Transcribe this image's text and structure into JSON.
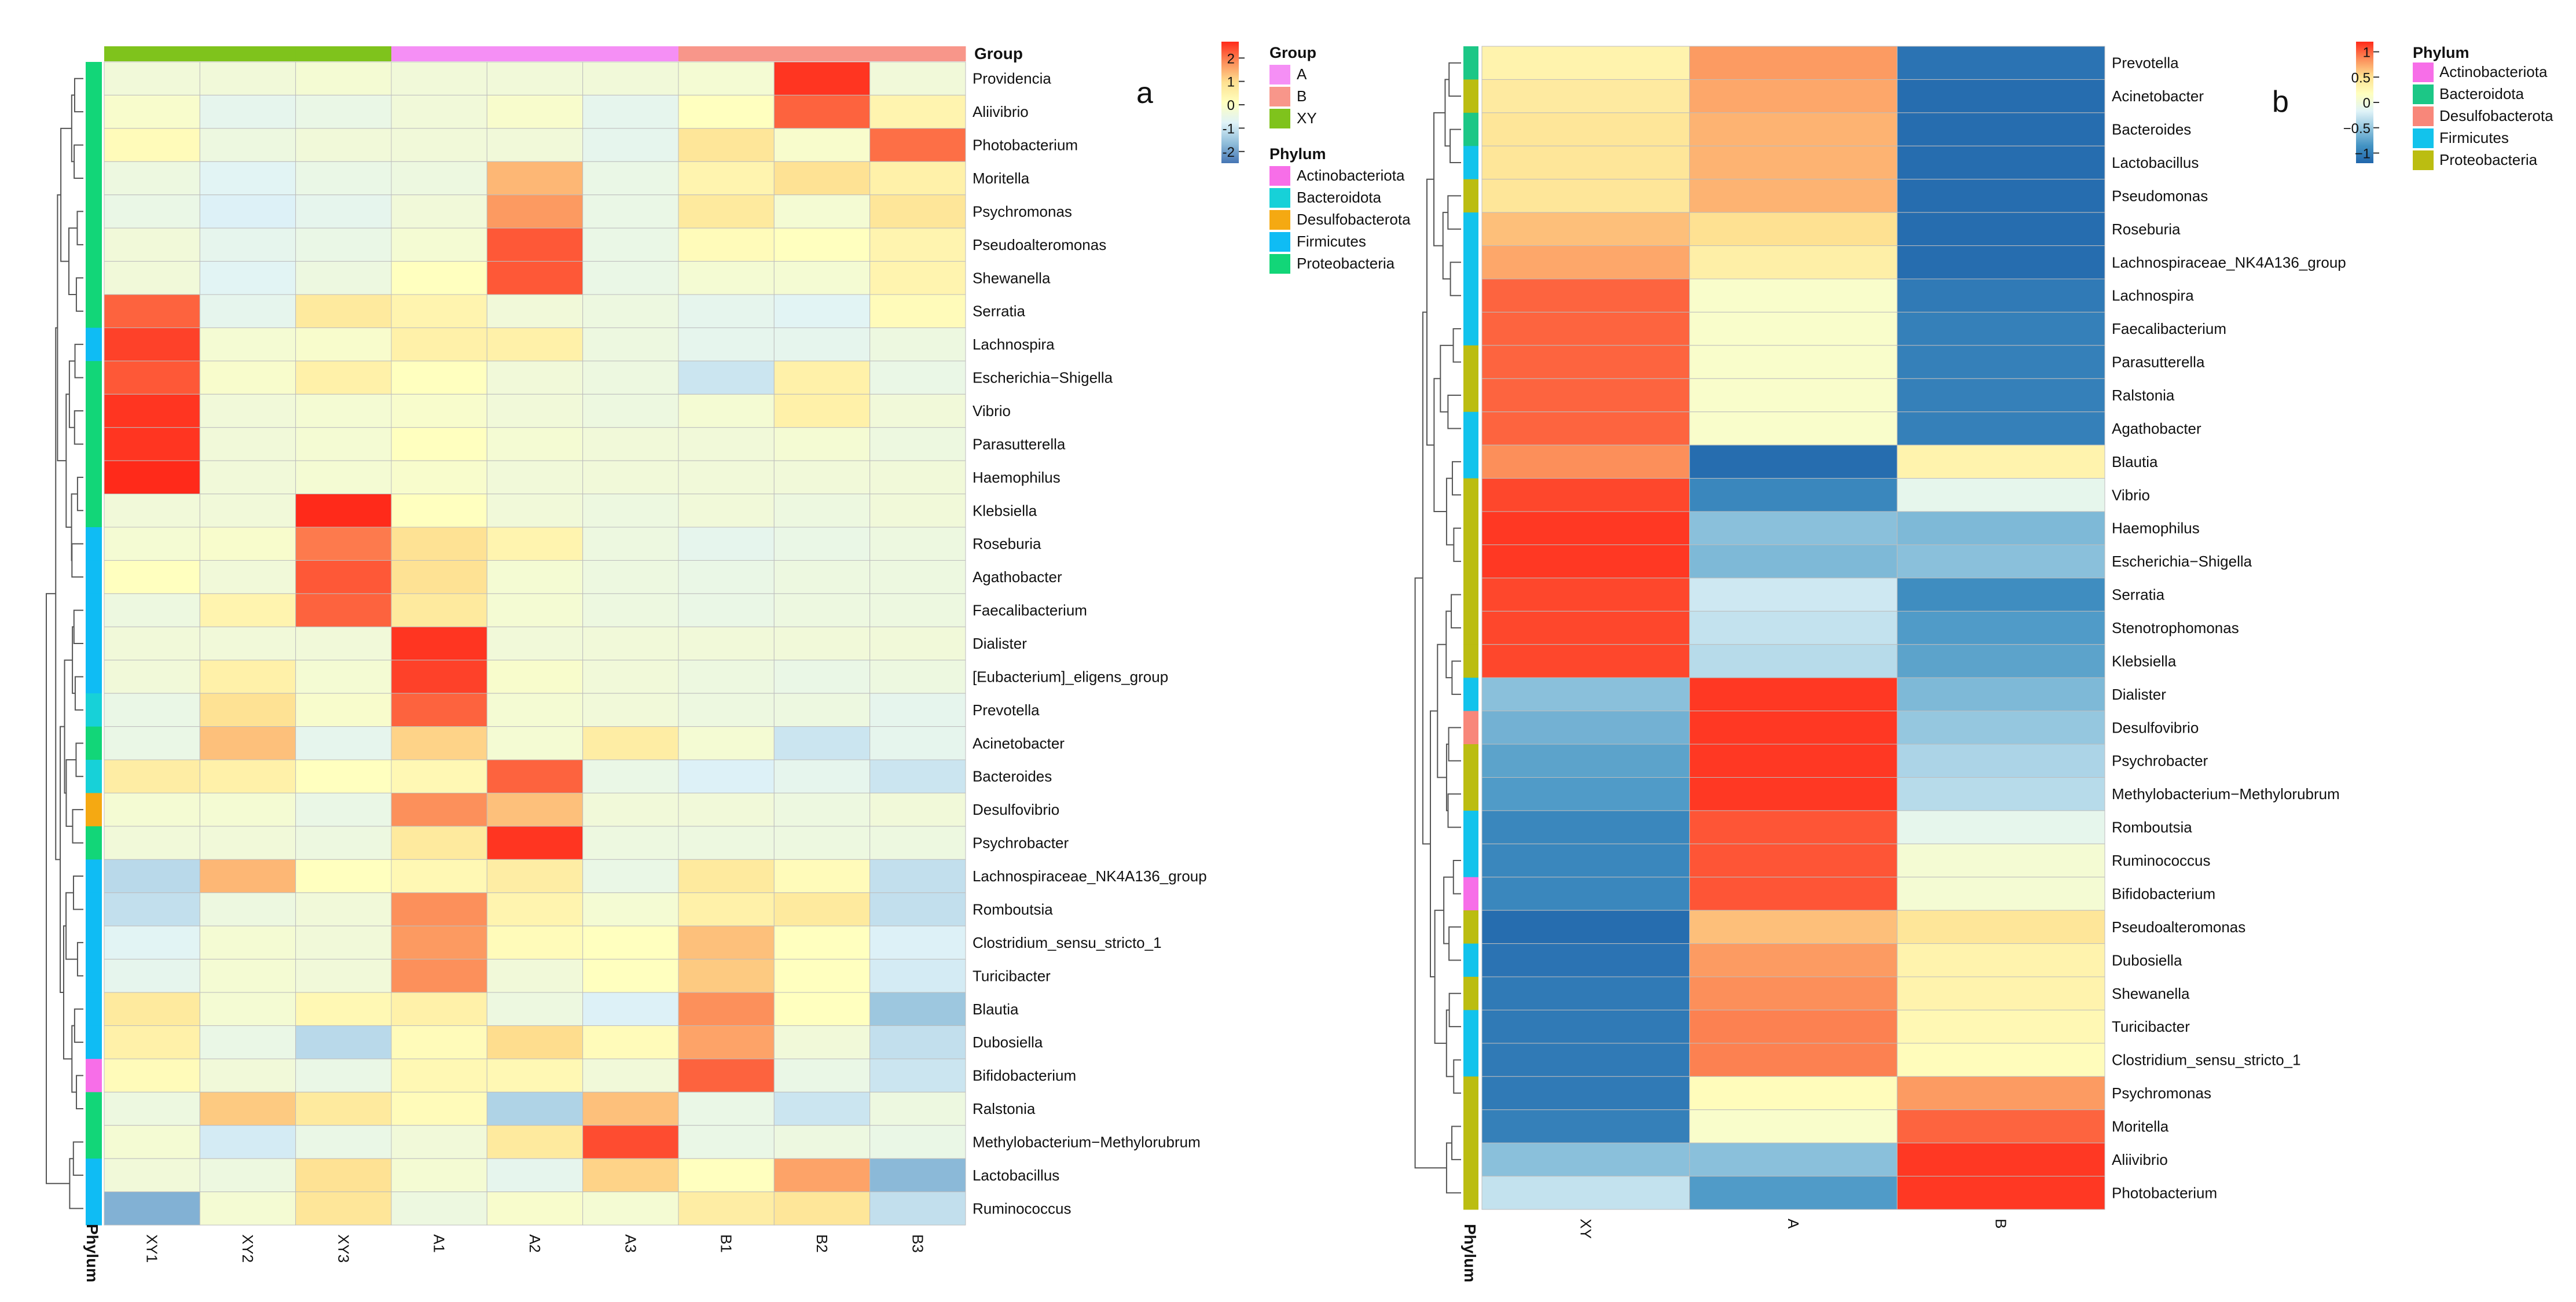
{
  "chart_data": [
    {
      "type": "heatmap",
      "panel_label": "a",
      "columns": [
        "XY1",
        "XY2",
        "XY3",
        "A1",
        "A2",
        "A3",
        "B1",
        "B2",
        "B3"
      ],
      "column_groups": [
        "XY",
        "XY",
        "XY",
        "A",
        "A",
        "A",
        "B",
        "B",
        "B"
      ],
      "rows": [
        "Providencia",
        "Aliivibrio",
        "Photobacterium",
        "Moritella",
        "Psychromonas",
        "Pseudoalteromonas",
        "Shewanella",
        "Serratia",
        "Lachnospira",
        "Escherichia−Shigella",
        "Vibrio",
        "Parasutterella",
        "Haemophilus",
        "Klebsiella",
        "Roseburia",
        "Agathobacter",
        "Faecalibacterium",
        "Dialister",
        "[Eubacterium]_eligens_group",
        "Prevotella",
        "Acinetobacter",
        "Bacteroides",
        "Desulfovibrio",
        "Psychrobacter",
        "Lachnospiraceae_NK4A136_group",
        "Romboutsia",
        "Clostridium_sensu_stricto_1",
        "Turicibacter",
        "Blautia",
        "Dubosiella",
        "Bifidobacterium",
        "Ralstonia",
        "Methylobacterium−Methylorubrum",
        "Lactobacillus",
        "Ruminococcus"
      ],
      "row_phylum": [
        "Proteobacteria",
        "Proteobacteria",
        "Proteobacteria",
        "Proteobacteria",
        "Proteobacteria",
        "Proteobacteria",
        "Proteobacteria",
        "Proteobacteria",
        "Firmicutes",
        "Proteobacteria",
        "Proteobacteria",
        "Proteobacteria",
        "Proteobacteria",
        "Proteobacteria",
        "Firmicutes",
        "Firmicutes",
        "Firmicutes",
        "Firmicutes",
        "Firmicutes",
        "Bacteroidota",
        "Proteobacteria",
        "Bacteroidota",
        "Desulfobacterota",
        "Proteobacteria",
        "Firmicutes",
        "Firmicutes",
        "Firmicutes",
        "Firmicutes",
        "Firmicutes",
        "Firmicutes",
        "Actinobacteriota",
        "Proteobacteria",
        "Proteobacteria",
        "Firmicutes",
        "Firmicutes"
      ],
      "values": [
        [
          -0.3,
          -0.3,
          -0.2,
          -0.3,
          -0.3,
          -0.3,
          -0.2,
          2.6,
          -0.3
        ],
        [
          -0.1,
          -0.6,
          -0.5,
          -0.3,
          -0.1,
          -0.6,
          0.1,
          2.2,
          0.4
        ],
        [
          0.2,
          -0.4,
          -0.3,
          -0.3,
          -0.3,
          -0.6,
          0.8,
          -0.1,
          2.1
        ],
        [
          -0.4,
          -0.7,
          -0.5,
          -0.4,
          1.4,
          -0.5,
          0.4,
          0.9,
          0.5
        ],
        [
          -0.5,
          -0.8,
          -0.6,
          -0.3,
          1.7,
          -0.5,
          0.7,
          -0.2,
          0.8
        ],
        [
          -0.3,
          -0.6,
          -0.5,
          -0.2,
          2.3,
          -0.5,
          0.2,
          0.1,
          0.4
        ],
        [
          -0.3,
          -0.7,
          -0.4,
          0.1,
          2.3,
          -0.5,
          -0.2,
          -0.2,
          0.4
        ],
        [
          2.2,
          -0.6,
          0.7,
          0.4,
          -0.3,
          -0.4,
          -0.6,
          -0.7,
          0.2
        ],
        [
          2.5,
          -0.2,
          -0.1,
          0.5,
          0.5,
          -0.4,
          -0.6,
          -0.6,
          -0.4
        ],
        [
          2.3,
          -0.1,
          0.5,
          0.1,
          -0.3,
          -0.4,
          -1.0,
          0.5,
          -0.5
        ],
        [
          2.6,
          -0.3,
          -0.2,
          -0.1,
          -0.3,
          -0.4,
          -0.2,
          0.5,
          -0.3
        ],
        [
          2.6,
          -0.3,
          -0.2,
          0.1,
          -0.2,
          -0.3,
          -0.3,
          -0.2,
          -0.4
        ],
        [
          2.7,
          -0.3,
          -0.2,
          -0.1,
          -0.3,
          -0.3,
          -0.3,
          -0.3,
          -0.3
        ],
        [
          -0.3,
          -0.3,
          2.7,
          0.1,
          -0.3,
          -0.4,
          -0.3,
          -0.4,
          -0.3
        ],
        [
          -0.2,
          -0.1,
          2.0,
          0.9,
          0.4,
          -0.4,
          -0.6,
          -0.5,
          -0.4
        ],
        [
          0.1,
          -0.3,
          2.3,
          0.9,
          -0.2,
          -0.4,
          -0.5,
          -0.4,
          -0.4
        ],
        [
          -0.4,
          0.4,
          2.2,
          0.7,
          -0.2,
          -0.4,
          -0.5,
          -0.4,
          -0.4
        ],
        [
          -0.3,
          -0.3,
          -0.3,
          2.6,
          -0.3,
          -0.3,
          -0.3,
          -0.3,
          -0.3
        ],
        [
          -0.3,
          0.5,
          -0.2,
          2.5,
          -0.1,
          -0.3,
          -0.4,
          -0.5,
          -0.4
        ],
        [
          -0.5,
          0.9,
          -0.1,
          2.2,
          -0.2,
          -0.3,
          -0.4,
          -0.4,
          -0.6
        ],
        [
          -0.5,
          1.3,
          -0.6,
          1.1,
          -0.2,
          0.6,
          -0.2,
          -1.0,
          -0.6
        ],
        [
          0.6,
          0.5,
          0.1,
          0.3,
          2.2,
          -0.5,
          -0.8,
          -0.6,
          -1.0
        ],
        [
          -0.2,
          -0.2,
          -0.5,
          1.8,
          1.3,
          -0.3,
          -0.3,
          -0.4,
          -0.3
        ],
        [
          -0.3,
          -0.3,
          -0.4,
          0.7,
          2.6,
          -0.4,
          -0.4,
          -0.4,
          -0.4
        ],
        [
          -1.2,
          1.4,
          0.1,
          0.3,
          0.6,
          -0.5,
          0.7,
          0.2,
          -1.1
        ],
        [
          -1.1,
          -0.4,
          -0.3,
          1.8,
          0.4,
          -0.2,
          0.5,
          0.7,
          -1.1
        ],
        [
          -0.7,
          -0.2,
          -0.3,
          1.7,
          0.2,
          0.1,
          1.3,
          0.1,
          -0.8
        ],
        [
          -0.6,
          -0.2,
          -0.3,
          1.8,
          -0.3,
          0.1,
          1.2,
          0.1,
          -0.9
        ],
        [
          0.7,
          -0.2,
          0.3,
          0.5,
          -0.4,
          -0.8,
          1.8,
          0.1,
          -1.5
        ],
        [
          0.5,
          -0.5,
          -1.2,
          0.2,
          1.0,
          0.2,
          1.6,
          -0.3,
          -1.1
        ],
        [
          0.2,
          -0.3,
          -0.5,
          0.3,
          0.3,
          -0.3,
          2.2,
          -0.5,
          -1.0
        ],
        [
          -0.4,
          1.2,
          0.7,
          0.2,
          -1.3,
          1.3,
          -0.5,
          -1.0,
          -0.4
        ],
        [
          -0.2,
          -0.9,
          -0.5,
          -0.3,
          0.7,
          2.4,
          -0.5,
          -0.4,
          -0.5
        ],
        [
          -0.3,
          -0.4,
          0.9,
          -0.2,
          -0.6,
          1.1,
          0.1,
          1.6,
          -1.7
        ],
        [
          -1.8,
          -0.2,
          0.8,
          -0.4,
          -0.1,
          -0.2,
          0.6,
          0.8,
          -1.1
        ]
      ],
      "color_scale": {
        "colors": [
          "#4575b4",
          "#91bfdb",
          "#e0f3f8",
          "#ffffbf",
          "#fee090",
          "#fc8d59",
          "#ff2a1a"
        ],
        "range": [
          -2.5,
          2.7
        ],
        "ticks": [
          -2,
          -1,
          0,
          1,
          2
        ]
      },
      "legend_group": {
        "title": "Group",
        "labels": [
          "A",
          "B",
          "XY"
        ]
      },
      "legend_phylum": {
        "title": "Phylum",
        "labels": [
          "Actinobacteriota",
          "Bacteroidota",
          "Desulfobacterota",
          "Firmicutes",
          "Proteobacteria"
        ]
      },
      "annotation_title": "Group",
      "phylum_axis_label": "Phylum"
    },
    {
      "type": "heatmap",
      "panel_label": "b",
      "columns": [
        "XY",
        "A",
        "B"
      ],
      "rows": [
        "Prevotella",
        "Acinetobacter",
        "Bacteroides",
        "Lactobacillus",
        "Pseudomonas",
        "Roseburia",
        "Lachnospiraceae_NK4A136_group",
        "Lachnospira",
        "Faecalibacterium",
        "Parasutterella",
        "Ralstonia",
        "Agathobacter",
        "Blautia",
        "Vibrio",
        "Haemophilus",
        "Escherichia−Shigella",
        "Serratia",
        "Stenotrophomonas",
        "Klebsiella",
        "Dialister",
        "Desulfovibrio",
        "Psychrobacter",
        "Methylobacterium−Methylorubrum",
        "Romboutsia",
        "Ruminococcus",
        "Bifidobacterium",
        "Pseudoalteromonas",
        "Dubosiella",
        "Shewanella",
        "Turicibacter",
        "Clostridium_sensu_stricto_1",
        "Psychromonas",
        "Moritella",
        "Aliivibrio",
        "Photobacterium"
      ],
      "row_phylum": [
        "Bacteroidota",
        "Proteobacteria",
        "Bacteroidota",
        "Firmicutes",
        "Proteobacteria",
        "Firmicutes",
        "Firmicutes",
        "Firmicutes",
        "Firmicutes",
        "Proteobacteria",
        "Proteobacteria",
        "Firmicutes",
        "Firmicutes",
        "Proteobacteria",
        "Proteobacteria",
        "Proteobacteria",
        "Proteobacteria",
        "Proteobacteria",
        "Proteobacteria",
        "Firmicutes",
        "Desulfobacterota",
        "Proteobacteria",
        "Proteobacteria",
        "Firmicutes",
        "Firmicutes",
        "Actinobacteriota",
        "Proteobacteria",
        "Firmicutes",
        "Proteobacteria",
        "Firmicutes",
        "Firmicutes",
        "Proteobacteria",
        "Proteobacteria",
        "Proteobacteria",
        "Proteobacteria"
      ],
      "values": [
        [
          0.3,
          0.8,
          -1.1
        ],
        [
          0.4,
          0.75,
          -1.15
        ],
        [
          0.45,
          0.7,
          -1.15
        ],
        [
          0.45,
          0.7,
          -1.15
        ],
        [
          0.45,
          0.7,
          -1.15
        ],
        [
          0.65,
          0.5,
          -1.15
        ],
        [
          0.75,
          0.35,
          -1.15
        ],
        [
          1.0,
          0.1,
          -1.05
        ],
        [
          1.0,
          0.1,
          -1.0
        ],
        [
          1.0,
          0.1,
          -1.0
        ],
        [
          1.0,
          0.1,
          -1.0
        ],
        [
          1.0,
          0.1,
          -1.0
        ],
        [
          0.85,
          -1.15,
          0.3
        ],
        [
          1.1,
          -0.95,
          -0.1
        ],
        [
          1.15,
          -0.55,
          -0.6
        ],
        [
          1.15,
          -0.6,
          -0.55
        ],
        [
          1.1,
          -0.25,
          -0.9
        ],
        [
          1.1,
          -0.3,
          -0.8
        ],
        [
          1.1,
          -0.35,
          -0.75
        ],
        [
          -0.55,
          1.15,
          -0.6
        ],
        [
          -0.65,
          1.15,
          -0.5
        ],
        [
          -0.75,
          1.15,
          -0.4
        ],
        [
          -0.8,
          1.15,
          -0.35
        ],
        [
          -0.95,
          1.05,
          -0.1
        ],
        [
          -0.95,
          1.05,
          0.05
        ],
        [
          -0.95,
          1.05,
          0.05
        ],
        [
          -1.15,
          0.65,
          0.45
        ],
        [
          -1.1,
          0.8,
          0.3
        ],
        [
          -1.05,
          0.85,
          0.3
        ],
        [
          -1.05,
          0.9,
          0.25
        ],
        [
          -1.05,
          0.9,
          0.2
        ],
        [
          -1.05,
          0.2,
          0.8
        ],
        [
          -1.0,
          0.1,
          1.0
        ],
        [
          -0.55,
          -0.55,
          1.15
        ],
        [
          -0.3,
          -0.8,
          1.15
        ]
      ],
      "color_scale": {
        "colors": [
          "#2166ac",
          "#4393c3",
          "#92c5de",
          "#e0f3f8",
          "#ffffbf",
          "#fee090",
          "#fc8d59",
          "#ff2a1a"
        ],
        "range": [
          -1.2,
          1.2
        ],
        "ticks": [
          1,
          0.5,
          0,
          -0.5,
          -1
        ],
        "tick_labels": [
          "1",
          "0.5",
          "0",
          "−0.5",
          "−1"
        ]
      },
      "legend_phylum": {
        "title": "Phylum",
        "labels": [
          "Actinobacteriota",
          "Bacteroidota",
          "Desulfobacterota",
          "Firmicutes",
          "Proteobacteria"
        ]
      },
      "phylum_axis_label": "Phylum"
    }
  ],
  "colors": {
    "group": {
      "A": "#f58ff5",
      "B": "#f8968a",
      "XY": "#7fc31c"
    },
    "phylum_a": {
      "Actinobacteriota": "#f76ee8",
      "Bacteroidota": "#17d1d8",
      "Desulfobacterota": "#f5a912",
      "Firmicutes": "#0fbcf4",
      "Proteobacteria": "#12d678"
    },
    "phylum_b": {
      "Actinobacteriota": "#f76ee8",
      "Bacteroidota": "#1cc786",
      "Desulfobacterota": "#f8877a",
      "Firmicutes": "#12c3ec",
      "Proteobacteria": "#bbbd11"
    }
  }
}
